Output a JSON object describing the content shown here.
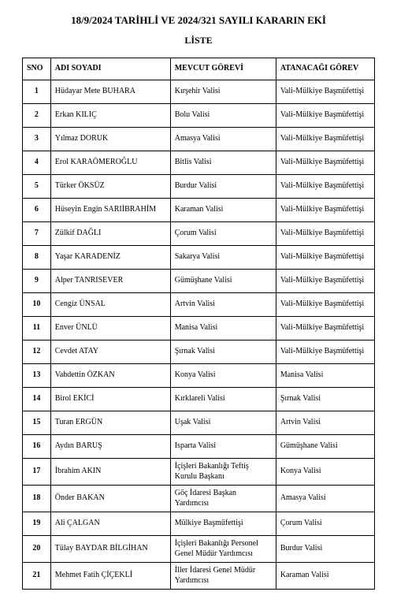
{
  "title": "18/9/2024 TARİHLİ VE 2024/321 SAYILI KARARIN EKİ",
  "subtitle": "LİSTE",
  "columns": [
    "SNO",
    "ADI SOYADI",
    "MEVCUT GÖREVİ",
    "ATANACAĞI GÖREV"
  ],
  "rows": [
    {
      "sno": "1",
      "name": "Hüdayar Mete BUHARA",
      "current": "Kırşehir Valisi",
      "new": "Vali-Mülkiye Başmüfettişi"
    },
    {
      "sno": "2",
      "name": "Erkan KILIÇ",
      "current": "Bolu Valisi",
      "new": "Vali-Mülkiye Başmüfettişi"
    },
    {
      "sno": "3",
      "name": "Yılmaz DORUK",
      "current": "Amasya Valisi",
      "new": "Vali-Mülkiye Başmüfettişi"
    },
    {
      "sno": "4",
      "name": "Erol KARAÖMEROĞLU",
      "current": "Bitlis Valisi",
      "new": "Vali-Mülkiye Başmüfettişi"
    },
    {
      "sno": "5",
      "name": "Türker ÖKSÜZ",
      "current": "Burdur Valisi",
      "new": "Vali-Mülkiye Başmüfettişi"
    },
    {
      "sno": "6",
      "name": "Hüseyin Engin SARIİBRAHİM",
      "current": "Karaman Valisi",
      "new": "Vali-Mülkiye Başmüfettişi"
    },
    {
      "sno": "7",
      "name": "Zülkif DAĞLI",
      "current": "Çorum Valisi",
      "new": "Vali-Mülkiye Başmüfettişi"
    },
    {
      "sno": "8",
      "name": "Yaşar KARADENİZ",
      "current": "Sakarya Valisi",
      "new": "Vali-Mülkiye Başmüfettişi"
    },
    {
      "sno": "9",
      "name": "Alper TANRISEVER",
      "current": "Gümüşhane Valisi",
      "new": "Vali-Mülkiye Başmüfettişi"
    },
    {
      "sno": "10",
      "name": "Cengiz ÜNSAL",
      "current": "Artvin Valisi",
      "new": "Vali-Mülkiye Başmüfettişi"
    },
    {
      "sno": "11",
      "name": "Enver ÜNLÜ",
      "current": "Manisa Valisi",
      "new": "Vali-Mülkiye Başmüfettişi"
    },
    {
      "sno": "12",
      "name": "Cevdet ATAY",
      "current": "Şırnak Valisi",
      "new": "Vali-Mülkiye Başmüfettişi"
    },
    {
      "sno": "13",
      "name": "Vahdettin ÖZKAN",
      "current": "Konya Valisi",
      "new": "Manisa Valisi"
    },
    {
      "sno": "14",
      "name": "Birol EKİCİ",
      "current": "Kırklareli Valisi",
      "new": "Şırnak Valisi"
    },
    {
      "sno": "15",
      "name": "Turan ERGÜN",
      "current": "Uşak Valisi",
      "new": "Artvin Valisi"
    },
    {
      "sno": "16",
      "name": "Aydın BARUŞ",
      "current": "Isparta Valisi",
      "new": "Gümüşhane Valisi"
    },
    {
      "sno": "17",
      "name": "İbrahim AKIN",
      "current": "İçişleri Bakanlığı Teftiş Kurulu Başkanı",
      "new": "Konya Valisi"
    },
    {
      "sno": "18",
      "name": "Önder BAKAN",
      "current": "Göç İdaresi Başkan Yardımcısı",
      "new": "Amasya Valisi"
    },
    {
      "sno": "19",
      "name": "Ali ÇALGAN",
      "current": "Mülkiye Başmüfettişi",
      "new": "Çorum Valisi"
    },
    {
      "sno": "20",
      "name": "Tülay BAYDAR BİLGİHAN",
      "current": "İçişleri Bakanlığı Personel Genel Müdür Yardımcısı",
      "new": "Burdur Valisi"
    },
    {
      "sno": "21",
      "name": "Mehmet Fatih ÇİÇEKLİ",
      "current": "İller İdaresi Genel Müdür Yardımcısı",
      "new": "Karaman Valisi"
    }
  ]
}
